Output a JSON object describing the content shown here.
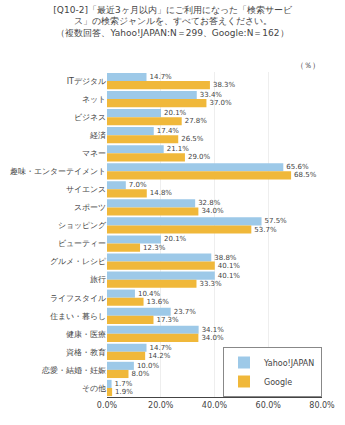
{
  "chart_data": {
    "type": "bar",
    "orientation": "horizontal",
    "title": "[Q10-2]「最近3ヶ月以内」にご利用になった「検索サービ\nス」の検索ジャンルを、すべてお答えください。\n（複数回答、Yahoo!JAPAN:N＝299、Google:N＝162）",
    "annotations": [
      "（％）"
    ],
    "categories": [
      "ITデジタル",
      "ネット",
      "ビジネス",
      "経済",
      "マネー",
      "趣味・エンターテイメント",
      "サイエンス",
      "スポーツ",
      "ショッピング",
      "ビューティー",
      "グルメ・レシピ",
      "旅行",
      "ライフスタイル",
      "住まい・暮らし",
      "健康・医療",
      "資格・教育",
      "恋愛・結婚・妊娠",
      "その他"
    ],
    "series": [
      {
        "name": "Yahoo!JAPAN",
        "color": "#9dc9e8",
        "values": [
          14.7,
          33.4,
          20.1,
          17.4,
          21.1,
          65.6,
          7.0,
          32.8,
          57.5,
          20.1,
          38.8,
          40.1,
          10.4,
          23.7,
          34.1,
          14.7,
          10.0,
          1.7
        ],
        "value_labels": [
          "14.7%",
          "33.4%",
          "20.1%",
          "17.4%",
          "21.1%",
          "65.6%",
          "7.0%",
          "32.8%",
          "57.5%",
          "20.1%",
          "38.8%",
          "40.1%",
          "10.4%",
          "23.7%",
          "34.1%",
          "14.7%",
          "10.0%",
          "1.7%"
        ]
      },
      {
        "name": "Google",
        "color": "#f0b83a",
        "values": [
          38.3,
          37.0,
          27.8,
          26.5,
          29.0,
          68.5,
          14.8,
          34.0,
          53.7,
          12.3,
          40.1,
          33.3,
          13.6,
          17.3,
          34.0,
          14.2,
          8.0,
          1.9
        ],
        "value_labels": [
          "38.3%",
          "37.0%",
          "27.8%",
          "26.5%",
          "29.0%",
          "68.5%",
          "14.8%",
          "34.0%",
          "53.7%",
          "12.3%",
          "40.1%",
          "33.3%",
          "13.6%",
          "17.3%",
          "34.0%",
          "14.2%",
          "8.0%",
          "1.9%"
        ]
      }
    ],
    "xlim": [
      0,
      80
    ],
    "xticks": [
      {
        "value": 0,
        "label": "0.0%"
      },
      {
        "value": 20,
        "label": "20.0%"
      },
      {
        "value": 40,
        "label": "40.0%"
      },
      {
        "value": 60,
        "label": "60.0%"
      },
      {
        "value": 80,
        "label": "80.0%"
      }
    ],
    "grid": true,
    "legend": "lower right",
    "data_labels": true
  }
}
